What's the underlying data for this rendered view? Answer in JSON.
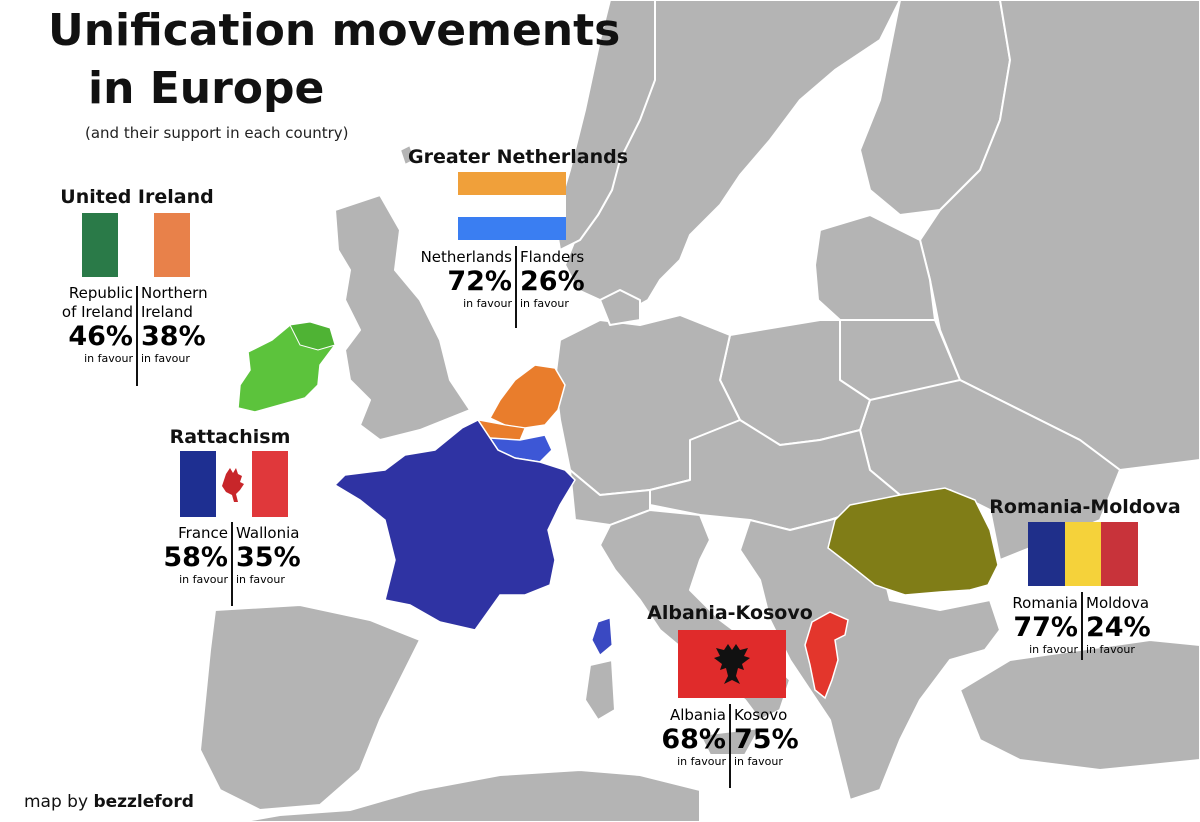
{
  "title_line1": "Unification movements",
  "title_line2": "in Europe",
  "subtitle": "(and their support in each country)",
  "credit_prefix": "map by",
  "credit_author": "bezzleford",
  "colors": {
    "sea": "#ffffff",
    "land": "#b4b4b4",
    "border": "#ffffff",
    "ireland": "#5cc33c",
    "netherlands": "#e97d2c",
    "belgium": "#3d57d6",
    "france": "#2f33a3",
    "corsica": "#3a49c2",
    "romania_moldova": "#807d17",
    "albania_kosovo": "#e3362c"
  },
  "movements": {
    "ireland": {
      "heading": "United Ireland",
      "flag_colors": [
        "#2a7a48",
        "#ffffff",
        "#e8814a"
      ],
      "left": {
        "name_1": "Republic",
        "name_2": "of Ireland",
        "pct": "46%",
        "fav": "in favour"
      },
      "right": {
        "name_1": "Northern",
        "name_2": "Ireland",
        "pct": "38%",
        "fav": "in favour"
      }
    },
    "netherlands": {
      "heading": "Greater Netherlands",
      "flag_colors": [
        "#f0a03a",
        "#ffffff",
        "#3a7ef2"
      ],
      "left": {
        "name_1": "Netherlands",
        "pct": "72%",
        "fav": "in favour"
      },
      "right": {
        "name_1": "Flanders",
        "pct": "26%",
        "fav": "in favour"
      }
    },
    "rattachism": {
      "heading": "Rattachism",
      "flag_colors": [
        "#1e2f91",
        "#ffffff",
        "#e0383b"
      ],
      "emblem": "rooster-icon",
      "left": {
        "name_1": "France",
        "pct": "58%",
        "fav": "in favour"
      },
      "right": {
        "name_1": "Wallonia",
        "pct": "35%",
        "fav": "in favour"
      }
    },
    "albania": {
      "heading": "Albania-Kosovo",
      "flag_colors": [
        "#e02b2b",
        "#111111"
      ],
      "emblem": "double-headed-eagle-icon",
      "left": {
        "name_1": "Albania",
        "pct": "68%",
        "fav": "in favour"
      },
      "right": {
        "name_1": "Kosovo",
        "pct": "75%",
        "fav": "in favour"
      }
    },
    "romania": {
      "heading": "Romania-Moldova",
      "flag_colors": [
        "#1f2f8a",
        "#f5d23a",
        "#c8333a"
      ],
      "left": {
        "name_1": "Romania",
        "pct": "77%",
        "fav": "in favour"
      },
      "right": {
        "name_1": "Moldova",
        "pct": "24%",
        "fav": "in favour"
      }
    }
  }
}
